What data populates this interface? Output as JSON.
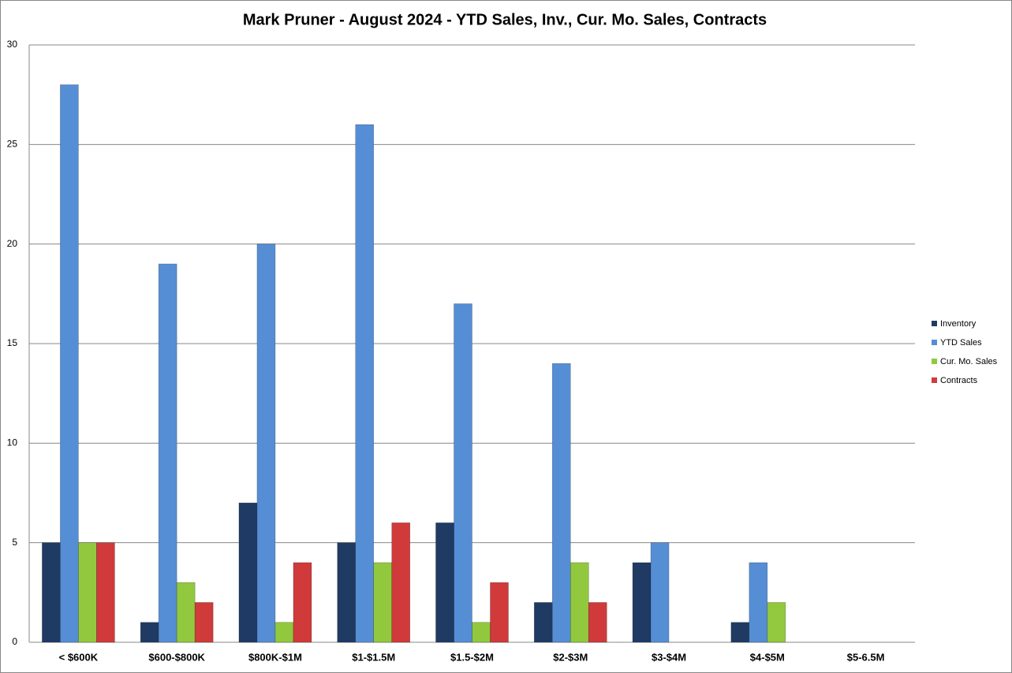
{
  "chart_data": {
    "type": "bar",
    "title": "Mark Pruner - August 2024 - YTD Sales, Inv., Cur. Mo. Sales, Contracts",
    "categories": [
      "< $600K",
      "$600-$800K",
      "$800K-$1M",
      "$1-$1.5M",
      "$1.5-$2M",
      "$2-$3M",
      "$3-$4M",
      "$4-$5M",
      "$5-6.5M"
    ],
    "series": [
      {
        "name": "Inventory",
        "color": "#1f3b64",
        "values": [
          5,
          1,
          7,
          5,
          6,
          2,
          4,
          1,
          0
        ]
      },
      {
        "name": "YTD Sales",
        "color": "#558ed5",
        "values": [
          28,
          19,
          20,
          26,
          17,
          14,
          5,
          4,
          0
        ]
      },
      {
        "name": "Cur. Mo. Sales",
        "color": "#92c83e",
        "values": [
          5,
          3,
          1,
          4,
          1,
          4,
          0,
          2,
          0
        ]
      },
      {
        "name": "Contracts",
        "color": "#d03a3a",
        "values": [
          5,
          2,
          4,
          6,
          3,
          2,
          0,
          0,
          0
        ]
      }
    ],
    "ylim": [
      0,
      30
    ],
    "yticks": [
      0,
      5,
      10,
      15,
      20,
      25,
      30
    ],
    "grid": true,
    "legend": "right"
  }
}
